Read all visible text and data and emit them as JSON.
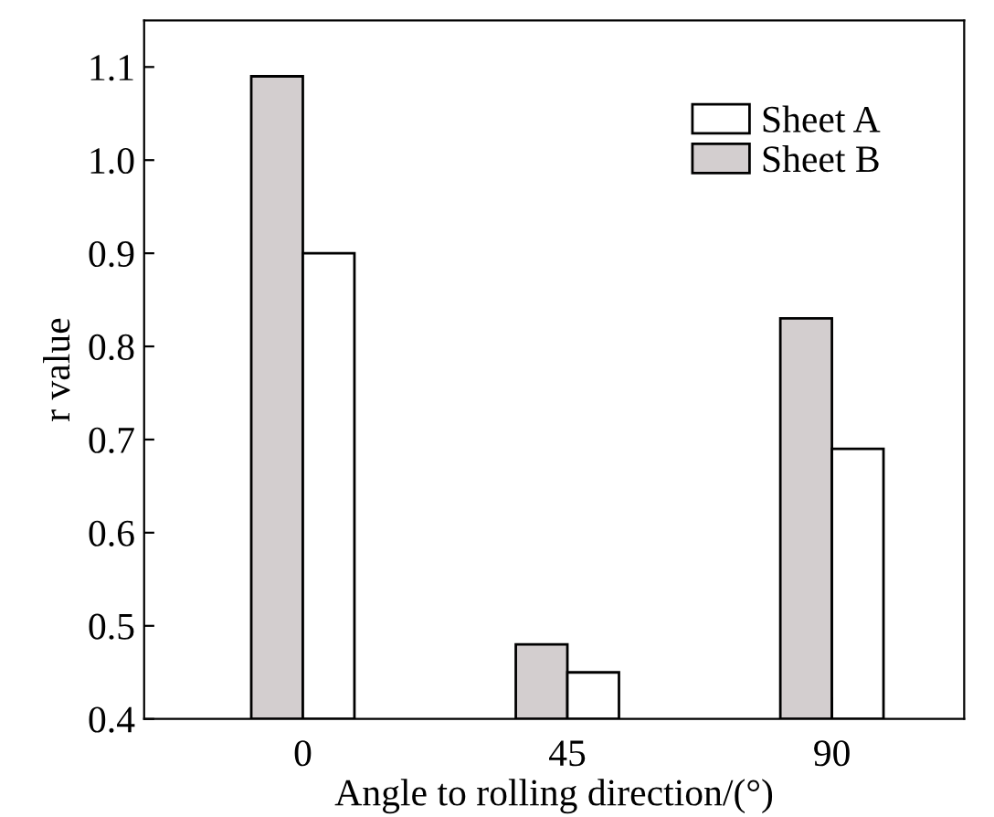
{
  "chart_data": {
    "type": "bar",
    "xlabel": "Angle to rolling direction/(°)",
    "ylabel": "r value",
    "categories": [
      "0",
      "45",
      "90"
    ],
    "series": [
      {
        "name": "Sheet B",
        "color": "#d3cecf",
        "values": [
          1.09,
          0.48,
          0.83
        ]
      },
      {
        "name": "Sheet A",
        "color": "#ffffff",
        "values": [
          0.9,
          0.45,
          0.69
        ]
      }
    ],
    "ylim": [
      0.4,
      1.15
    ],
    "yticks": [
      0.4,
      0.5,
      0.6,
      0.7,
      0.8,
      0.9,
      {
        "value": 1.0,
        "label": "1.0"
      },
      1.1
    ],
    "legend": "top right",
    "grid": false
  }
}
